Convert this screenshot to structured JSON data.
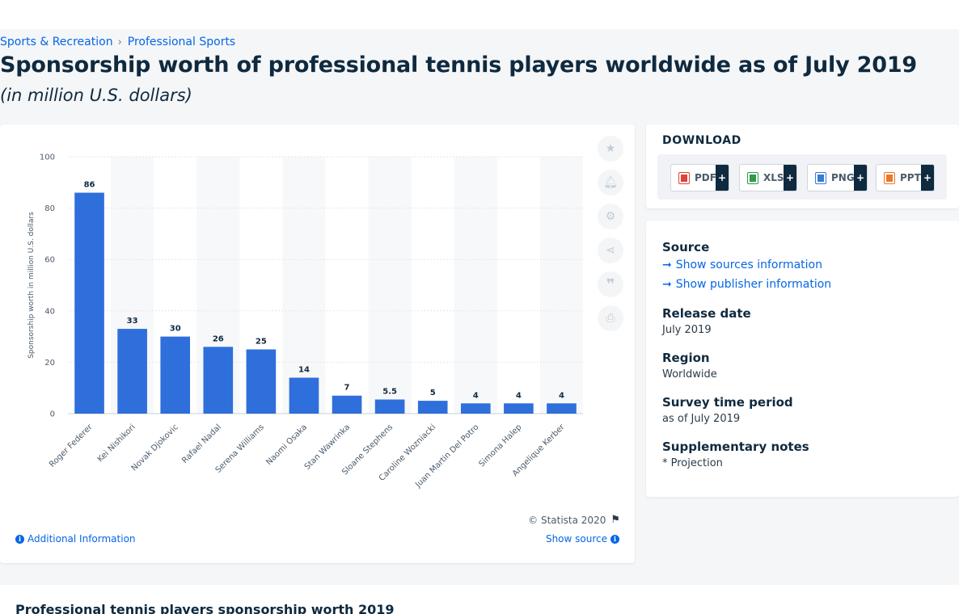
{
  "breadcrumb": {
    "items": [
      "Sports & Recreation",
      "Professional Sports"
    ],
    "separator": "›"
  },
  "page": {
    "title": "Sponsorship worth of professional tennis players worldwide as of July 2019",
    "subtitle": "(in million U.S. dollars)"
  },
  "chart_data": {
    "type": "bar",
    "categories": [
      "Roger Federer",
      "Kei Nishikori",
      "Novak Djokovic",
      "Rafael Nadal",
      "Serena Williams",
      "Naomi Osaka",
      "Stan Wawrinka",
      "Sloane Stephens",
      "Caroline Wozniacki",
      "Juan Martin Del Potro",
      "Simona Halep",
      "Angelique Kerber"
    ],
    "values": [
      86,
      33,
      30,
      26,
      25,
      14,
      7,
      5.5,
      5,
      4,
      4,
      4
    ],
    "data_labels": [
      "86",
      "33",
      "30",
      "26",
      "25",
      "14",
      "7",
      "5.5",
      "5",
      "4",
      "4",
      "4"
    ],
    "ylabel": "Sponsorship worth in million U.S. dollars",
    "ylim": [
      0,
      100
    ],
    "yticks": [
      0,
      20,
      40,
      60,
      80,
      100
    ],
    "grid": true,
    "bar_color": "#2f6fdb"
  },
  "chart_footer": {
    "copyright": "© Statista 2020",
    "additional_info": "Additional Information",
    "show_source": "Show source"
  },
  "toolbar": {
    "icons": [
      "star-icon",
      "bell-icon",
      "gear-icon",
      "share-icon",
      "quote-icon",
      "print-icon"
    ]
  },
  "download": {
    "title": "DOWNLOAD",
    "buttons": [
      {
        "label": "PDF",
        "color": "#e0433a"
      },
      {
        "label": "XLS",
        "color": "#2e9a4a"
      },
      {
        "label": "PNG",
        "color": "#3a7bd5"
      },
      {
        "label": "PPT",
        "color": "#e8792b"
      }
    ]
  },
  "info": {
    "source_heading": "Source",
    "show_sources": "Show sources information",
    "show_publisher": "Show publisher information",
    "release_heading": "Release date",
    "release_value": "July 2019",
    "region_heading": "Region",
    "region_value": "Worldwide",
    "survey_heading": "Survey time period",
    "survey_value": "as of July 2019",
    "notes_heading": "Supplementary notes",
    "notes_value": "* Projection"
  },
  "bottom": {
    "title": "Professional tennis players sponsorship worth 2019"
  }
}
